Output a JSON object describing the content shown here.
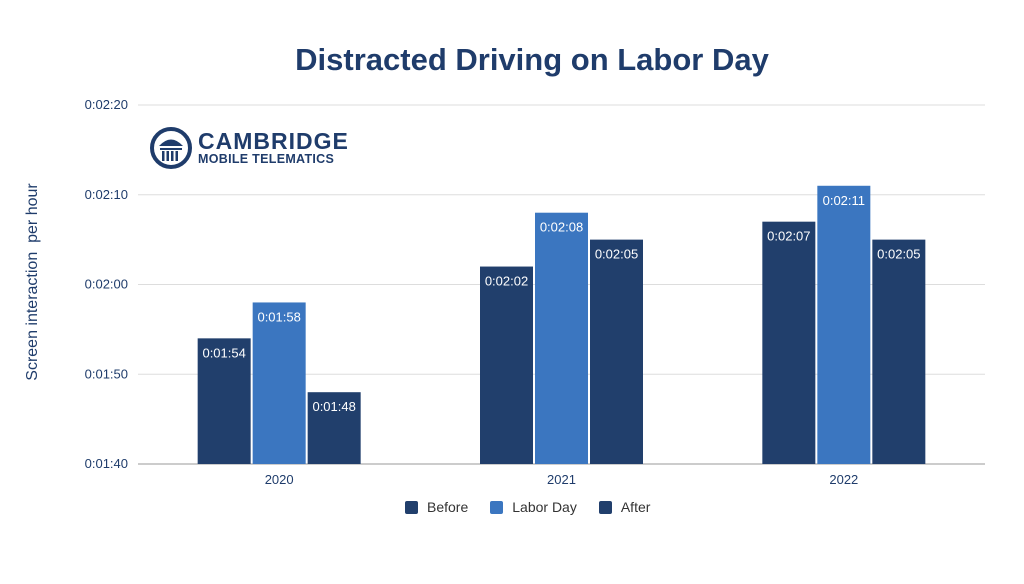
{
  "chart_data": {
    "type": "bar",
    "title": "Distracted Driving on Labor Day",
    "ylabel": "Screen interaction  per hour",
    "xlabel": "",
    "categories": [
      "2020",
      "2021",
      "2022"
    ],
    "ylim": [
      "0:01:40",
      "0:02:20"
    ],
    "yticks": [
      "0:01:40",
      "0:01:50",
      "0:02:00",
      "0:02:10",
      "0:02:20"
    ],
    "grid": true,
    "legend_position": "bottom",
    "series": [
      {
        "name": "Before",
        "color": "#213f6c",
        "values": [
          "0:01:54",
          "0:02:02",
          "0:02:07"
        ]
      },
      {
        "name": "Labor Day",
        "color": "#3b76c0",
        "values": [
          "0:01:58",
          "0:02:08",
          "0:02:11"
        ]
      },
      {
        "name": "After",
        "color": "#213f6c",
        "values": [
          "0:01:48",
          "0:02:05",
          "0:02:05"
        ]
      }
    ]
  },
  "logo": {
    "line1": "CAMBRIDGE",
    "line2": "MOBILE TELEMATICS"
  }
}
